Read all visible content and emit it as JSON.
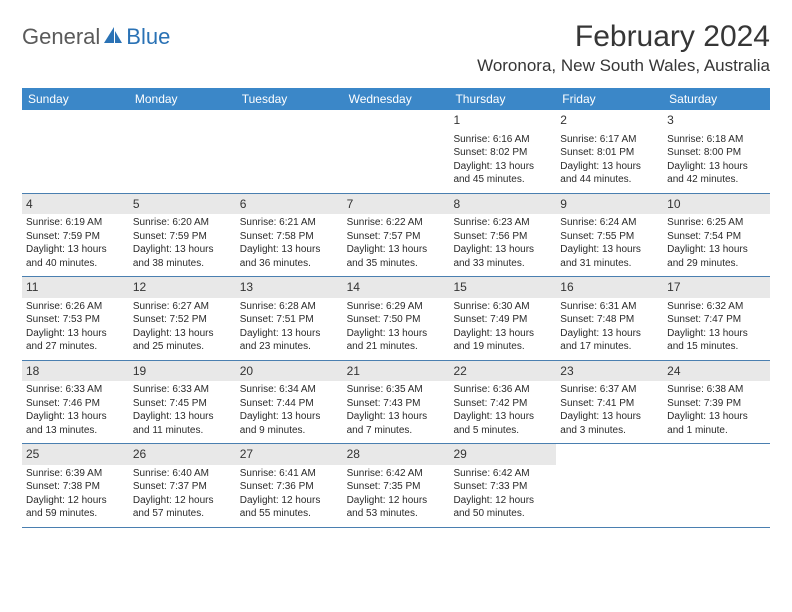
{
  "logo": {
    "general": "General",
    "blue": "Blue"
  },
  "title": "February 2024",
  "location": "Woronora, New South Wales, Australia",
  "colors": {
    "header_bg": "#3b87c8",
    "header_text": "#ffffff",
    "shade_bg": "#e8e8e8",
    "rule": "#4a7fb0",
    "title_color": "#363636",
    "logo_gray": "#5a5a5a",
    "logo_blue": "#2a72b5"
  },
  "day_headers": [
    "Sunday",
    "Monday",
    "Tuesday",
    "Wednesday",
    "Thursday",
    "Friday",
    "Saturday"
  ],
  "weeks": [
    [
      {
        "blank": true
      },
      {
        "blank": true
      },
      {
        "blank": true
      },
      {
        "blank": true
      },
      {
        "day": "1",
        "sunrise": "Sunrise: 6:16 AM",
        "sunset": "Sunset: 8:02 PM",
        "daylight": "Daylight: 13 hours and 45 minutes."
      },
      {
        "day": "2",
        "sunrise": "Sunrise: 6:17 AM",
        "sunset": "Sunset: 8:01 PM",
        "daylight": "Daylight: 13 hours and 44 minutes."
      },
      {
        "day": "3",
        "sunrise": "Sunrise: 6:18 AM",
        "sunset": "Sunset: 8:00 PM",
        "daylight": "Daylight: 13 hours and 42 minutes."
      }
    ],
    [
      {
        "day": "4",
        "shaded": true,
        "sunrise": "Sunrise: 6:19 AM",
        "sunset": "Sunset: 7:59 PM",
        "daylight": "Daylight: 13 hours and 40 minutes."
      },
      {
        "day": "5",
        "shaded": true,
        "sunrise": "Sunrise: 6:20 AM",
        "sunset": "Sunset: 7:59 PM",
        "daylight": "Daylight: 13 hours and 38 minutes."
      },
      {
        "day": "6",
        "shaded": true,
        "sunrise": "Sunrise: 6:21 AM",
        "sunset": "Sunset: 7:58 PM",
        "daylight": "Daylight: 13 hours and 36 minutes."
      },
      {
        "day": "7",
        "shaded": true,
        "sunrise": "Sunrise: 6:22 AM",
        "sunset": "Sunset: 7:57 PM",
        "daylight": "Daylight: 13 hours and 35 minutes."
      },
      {
        "day": "8",
        "shaded": true,
        "sunrise": "Sunrise: 6:23 AM",
        "sunset": "Sunset: 7:56 PM",
        "daylight": "Daylight: 13 hours and 33 minutes."
      },
      {
        "day": "9",
        "shaded": true,
        "sunrise": "Sunrise: 6:24 AM",
        "sunset": "Sunset: 7:55 PM",
        "daylight": "Daylight: 13 hours and 31 minutes."
      },
      {
        "day": "10",
        "shaded": true,
        "sunrise": "Sunrise: 6:25 AM",
        "sunset": "Sunset: 7:54 PM",
        "daylight": "Daylight: 13 hours and 29 minutes."
      }
    ],
    [
      {
        "day": "11",
        "shaded": true,
        "sunrise": "Sunrise: 6:26 AM",
        "sunset": "Sunset: 7:53 PM",
        "daylight": "Daylight: 13 hours and 27 minutes."
      },
      {
        "day": "12",
        "shaded": true,
        "sunrise": "Sunrise: 6:27 AM",
        "sunset": "Sunset: 7:52 PM",
        "daylight": "Daylight: 13 hours and 25 minutes."
      },
      {
        "day": "13",
        "shaded": true,
        "sunrise": "Sunrise: 6:28 AM",
        "sunset": "Sunset: 7:51 PM",
        "daylight": "Daylight: 13 hours and 23 minutes."
      },
      {
        "day": "14",
        "shaded": true,
        "sunrise": "Sunrise: 6:29 AM",
        "sunset": "Sunset: 7:50 PM",
        "daylight": "Daylight: 13 hours and 21 minutes."
      },
      {
        "day": "15",
        "shaded": true,
        "sunrise": "Sunrise: 6:30 AM",
        "sunset": "Sunset: 7:49 PM",
        "daylight": "Daylight: 13 hours and 19 minutes."
      },
      {
        "day": "16",
        "shaded": true,
        "sunrise": "Sunrise: 6:31 AM",
        "sunset": "Sunset: 7:48 PM",
        "daylight": "Daylight: 13 hours and 17 minutes."
      },
      {
        "day": "17",
        "shaded": true,
        "sunrise": "Sunrise: 6:32 AM",
        "sunset": "Sunset: 7:47 PM",
        "daylight": "Daylight: 13 hours and 15 minutes."
      }
    ],
    [
      {
        "day": "18",
        "shaded": true,
        "sunrise": "Sunrise: 6:33 AM",
        "sunset": "Sunset: 7:46 PM",
        "daylight": "Daylight: 13 hours and 13 minutes."
      },
      {
        "day": "19",
        "shaded": true,
        "sunrise": "Sunrise: 6:33 AM",
        "sunset": "Sunset: 7:45 PM",
        "daylight": "Daylight: 13 hours and 11 minutes."
      },
      {
        "day": "20",
        "shaded": true,
        "sunrise": "Sunrise: 6:34 AM",
        "sunset": "Sunset: 7:44 PM",
        "daylight": "Daylight: 13 hours and 9 minutes."
      },
      {
        "day": "21",
        "shaded": true,
        "sunrise": "Sunrise: 6:35 AM",
        "sunset": "Sunset: 7:43 PM",
        "daylight": "Daylight: 13 hours and 7 minutes."
      },
      {
        "day": "22",
        "shaded": true,
        "sunrise": "Sunrise: 6:36 AM",
        "sunset": "Sunset: 7:42 PM",
        "daylight": "Daylight: 13 hours and 5 minutes."
      },
      {
        "day": "23",
        "shaded": true,
        "sunrise": "Sunrise: 6:37 AM",
        "sunset": "Sunset: 7:41 PM",
        "daylight": "Daylight: 13 hours and 3 minutes."
      },
      {
        "day": "24",
        "shaded": true,
        "sunrise": "Sunrise: 6:38 AM",
        "sunset": "Sunset: 7:39 PM",
        "daylight": "Daylight: 13 hours and 1 minute."
      }
    ],
    [
      {
        "day": "25",
        "shaded": true,
        "sunrise": "Sunrise: 6:39 AM",
        "sunset": "Sunset: 7:38 PM",
        "daylight": "Daylight: 12 hours and 59 minutes."
      },
      {
        "day": "26",
        "shaded": true,
        "sunrise": "Sunrise: 6:40 AM",
        "sunset": "Sunset: 7:37 PM",
        "daylight": "Daylight: 12 hours and 57 minutes."
      },
      {
        "day": "27",
        "shaded": true,
        "sunrise": "Sunrise: 6:41 AM",
        "sunset": "Sunset: 7:36 PM",
        "daylight": "Daylight: 12 hours and 55 minutes."
      },
      {
        "day": "28",
        "shaded": true,
        "sunrise": "Sunrise: 6:42 AM",
        "sunset": "Sunset: 7:35 PM",
        "daylight": "Daylight: 12 hours and 53 minutes."
      },
      {
        "day": "29",
        "shaded": true,
        "sunrise": "Sunrise: 6:42 AM",
        "sunset": "Sunset: 7:33 PM",
        "daylight": "Daylight: 12 hours and 50 minutes."
      },
      {
        "blank": true
      },
      {
        "blank": true
      }
    ]
  ]
}
